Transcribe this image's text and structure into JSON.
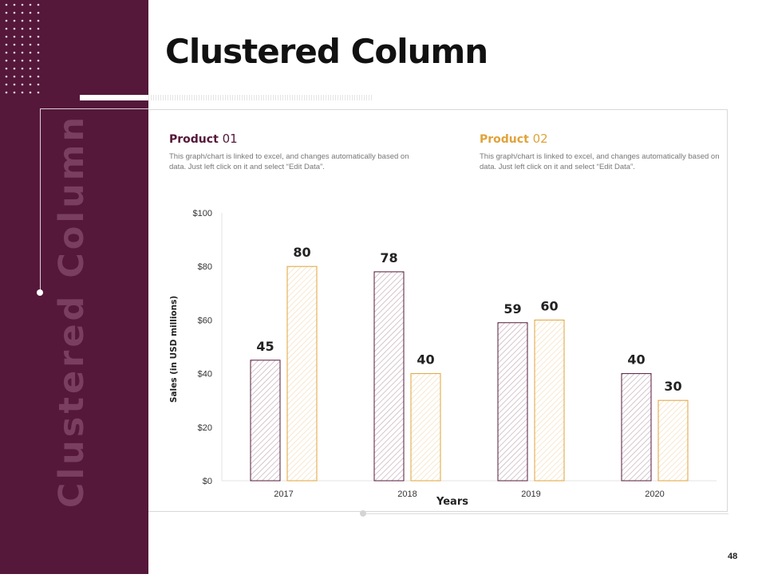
{
  "slide": {
    "title": "Clustered Column",
    "vertical_watermark": "Clustered Column",
    "page_number": "48"
  },
  "products": [
    {
      "label": "Product",
      "number": "01",
      "description": "This graph/chart is linked to excel, and changes automatically based on data. Just left click on it and select “Edit Data”."
    },
    {
      "label": "Product",
      "number": "02",
      "description": "This graph/chart is linked to excel, and changes automatically based on data. Just left click on it and select “Edit Data”."
    }
  ],
  "colors": {
    "sidebar": "#55183a",
    "product1": "#55183a",
    "product2": "#e0a33a"
  },
  "chart_data": {
    "type": "bar",
    "categories": [
      "2017",
      "2018",
      "2019",
      "2020"
    ],
    "series": [
      {
        "values": [
          45,
          78,
          59,
          40
        ],
        "color": "#55183a"
      },
      {
        "values": [
          80,
          40,
          60,
          30
        ],
        "color": "#e0a33a"
      }
    ],
    "xlabel": "Years",
    "ylabel": "Sales (in USD millions)",
    "ylim": [
      0,
      100
    ],
    "yticks": [
      0,
      20,
      40,
      60,
      80,
      100
    ],
    "ytick_labels": [
      "$0",
      "$20",
      "$40",
      "$60",
      "$80",
      "$100"
    ],
    "grid": false,
    "legend": "none",
    "data_labels": true,
    "fill": "diagonal-hatch"
  }
}
